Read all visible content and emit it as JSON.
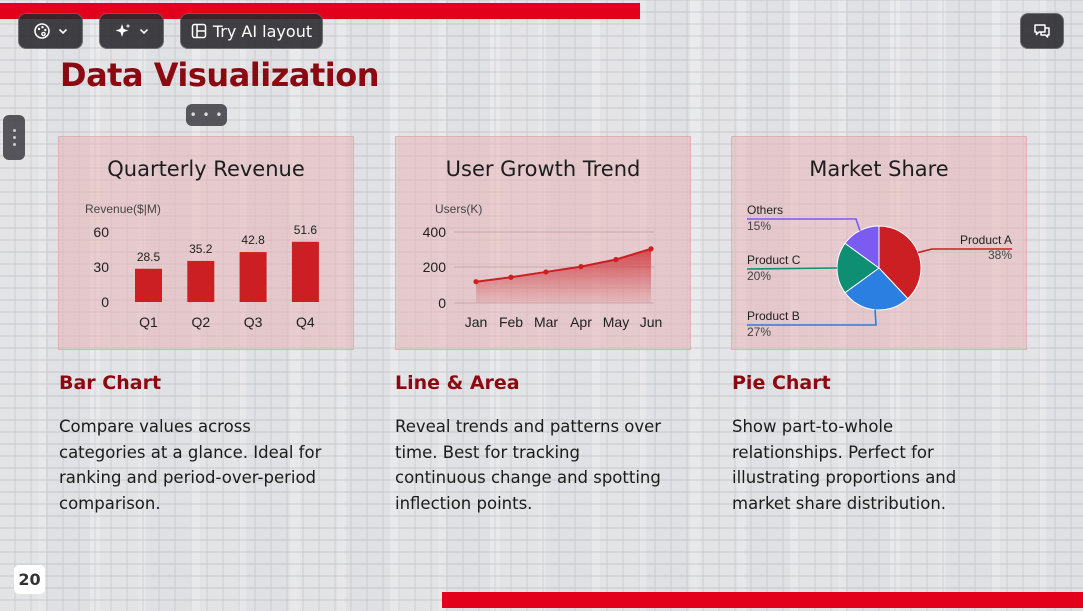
{
  "toolbar": {
    "theme_icon": "palette-icon",
    "ai_icon": "sparkle-icon",
    "ai_layout_label": "Try AI layout",
    "comments_icon": "comments-icon"
  },
  "slide": {
    "title": "Data Visualization",
    "page_number": "20",
    "accent_color": "#e2001a",
    "title_color": "#8b0a12"
  },
  "sections": [
    {
      "heading": "Bar Chart",
      "desc_lines": [
        "Compare values across",
        "categories at a glance. Ideal for",
        "ranking and period-over-period",
        "comparison."
      ]
    },
    {
      "heading": "Line & Area",
      "desc_lines": [
        "Reveal trends and patterns over",
        "time. Best for tracking",
        "continuous change and spotting",
        "inflection points."
      ]
    },
    {
      "heading": "Pie Chart",
      "desc_lines": [
        "Show part-to-whole",
        "relationships. Perfect for",
        "illustrating proportions and",
        "market share distribution."
      ]
    }
  ],
  "chart_data": [
    {
      "type": "bar",
      "title": "Quarterly Revenue",
      "ylabel": "Revenue($|M)",
      "categories": [
        "Q1",
        "Q2",
        "Q3",
        "Q4"
      ],
      "values": [
        28.5,
        35.2,
        42.8,
        51.6
      ],
      "value_labels": [
        "28.5",
        "35.2",
        "42.8",
        "51.6"
      ],
      "yticks": [
        "60",
        "30",
        "0"
      ],
      "ylim": [
        0,
        60
      ],
      "grid": false,
      "color": "#cc1f24"
    },
    {
      "type": "line",
      "title": "User Growth Trend",
      "ylabel": "Users(K)",
      "categories": [
        "Jan",
        "Feb",
        "Mar",
        "Apr",
        "May",
        "Jun"
      ],
      "values": [
        120,
        145,
        175,
        205,
        245,
        305
      ],
      "yticks": [
        "400",
        "200",
        "0"
      ],
      "ylim": [
        0,
        400
      ],
      "area": true,
      "grid": true,
      "color": "#cc1f24"
    },
    {
      "type": "pie",
      "title": "Market Share",
      "slices": [
        {
          "label": "Product A",
          "pct_label": "38%",
          "value": 38,
          "color": "#cc1f24"
        },
        {
          "label": "Product B",
          "pct_label": "27%",
          "value": 27,
          "color": "#2a7fe0"
        },
        {
          "label": "Product C",
          "pct_label": "20%",
          "value": 20,
          "color": "#0e8f74"
        },
        {
          "label": "Others",
          "pct_label": "15%",
          "value": 15,
          "color": "#7b5cf0"
        }
      ]
    }
  ]
}
